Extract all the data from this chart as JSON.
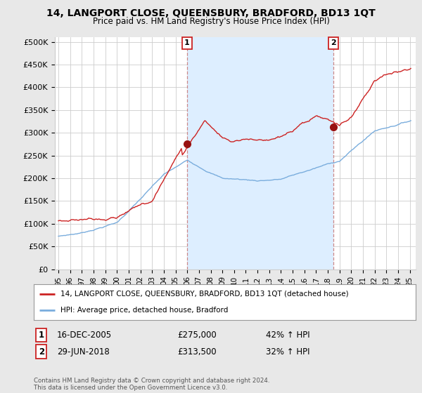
{
  "title": "14, LANGPORT CLOSE, QUEENSBURY, BRADFORD, BD13 1QT",
  "subtitle": "Price paid vs. HM Land Registry's House Price Index (HPI)",
  "ylabel_ticks": [
    0,
    50000,
    100000,
    150000,
    200000,
    250000,
    300000,
    350000,
    400000,
    450000,
    500000
  ],
  "ylabel_labels": [
    "£0",
    "£50K",
    "£100K",
    "£150K",
    "£200K",
    "£250K",
    "£300K",
    "£350K",
    "£400K",
    "£450K",
    "£500K"
  ],
  "ylim": [
    0,
    510000
  ],
  "xlim_start": 1994.7,
  "xlim_end": 2025.5,
  "hpi_color": "#7aaddd",
  "price_color": "#cc2222",
  "background_color": "#e8e8e8",
  "plot_bg_color": "#ffffff",
  "shade_color": "#ddeeff",
  "grid_color": "#cccccc",
  "sale1": {
    "year": 2005.96,
    "price": 275000,
    "label": "1"
  },
  "sale2": {
    "year": 2018.49,
    "price": 313500,
    "label": "2"
  },
  "legend_line1": "14, LANGPORT CLOSE, QUEENSBURY, BRADFORD, BD13 1QT (detached house)",
  "legend_line2": "HPI: Average price, detached house, Bradford",
  "table_row1": [
    "1",
    "16-DEC-2005",
    "£275,000",
    "42% ↑ HPI"
  ],
  "table_row2": [
    "2",
    "29-JUN-2018",
    "£313,500",
    "32% ↑ HPI"
  ],
  "copyright": "Contains HM Land Registry data © Crown copyright and database right 2024.\nThis data is licensed under the Open Government Licence v3.0.",
  "figsize": [
    6.0,
    5.6
  ],
  "dpi": 100
}
